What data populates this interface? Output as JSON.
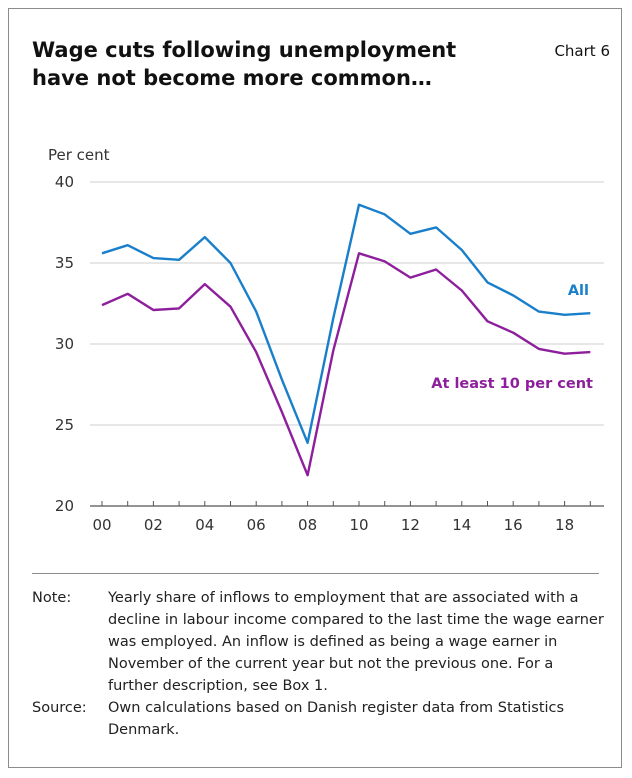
{
  "header": {
    "title_line1": "Wage cuts following unemployment",
    "title_line2": "have not become more common…",
    "chart_number": "Chart 6"
  },
  "colors": {
    "all": "#1a7fcb",
    "at_least_10": "#8e1f9c",
    "grid": "#cfcfcf",
    "axis": "#555555",
    "text": "#333333"
  },
  "chart_data": {
    "type": "line",
    "ylabel": "Per cent",
    "ylim": [
      20,
      40
    ],
    "yticks": [
      20,
      25,
      30,
      35,
      40
    ],
    "grid": true,
    "x": [
      2000,
      2001,
      2002,
      2003,
      2004,
      2005,
      2006,
      2007,
      2008,
      2009,
      2010,
      2011,
      2012,
      2013,
      2014,
      2015,
      2016,
      2017,
      2018,
      2019
    ],
    "xtick_labels": [
      "00",
      "02",
      "04",
      "06",
      "08",
      "10",
      "12",
      "14",
      "16",
      "18"
    ],
    "series": [
      {
        "name": "All",
        "values": [
          35.6,
          36.1,
          35.3,
          35.2,
          36.6,
          35.0,
          32.0,
          27.8,
          23.9,
          31.6,
          38.6,
          38.0,
          36.8,
          37.2,
          35.8,
          33.8,
          33.0,
          32.0,
          31.8,
          31.9
        ]
      },
      {
        "name": "At least 10 per cent",
        "values": [
          32.4,
          33.1,
          32.1,
          32.2,
          33.7,
          32.3,
          29.5,
          25.8,
          21.9,
          29.6,
          35.6,
          35.1,
          34.1,
          34.6,
          33.3,
          31.4,
          30.7,
          29.7,
          29.4,
          29.5
        ]
      }
    ]
  },
  "notes": [
    {
      "label": "Note:",
      "text": "Yearly share of inflows to employment that are associated with a decline in labour income compared to the last time the wage earner was employed. An inflow is defined as being a wage earner in November of the current year but not the previous one. For a further description, see Box 1."
    },
    {
      "label": "Source:",
      "text": "Own calculations based on Danish register data from Statistics Denmark."
    }
  ]
}
